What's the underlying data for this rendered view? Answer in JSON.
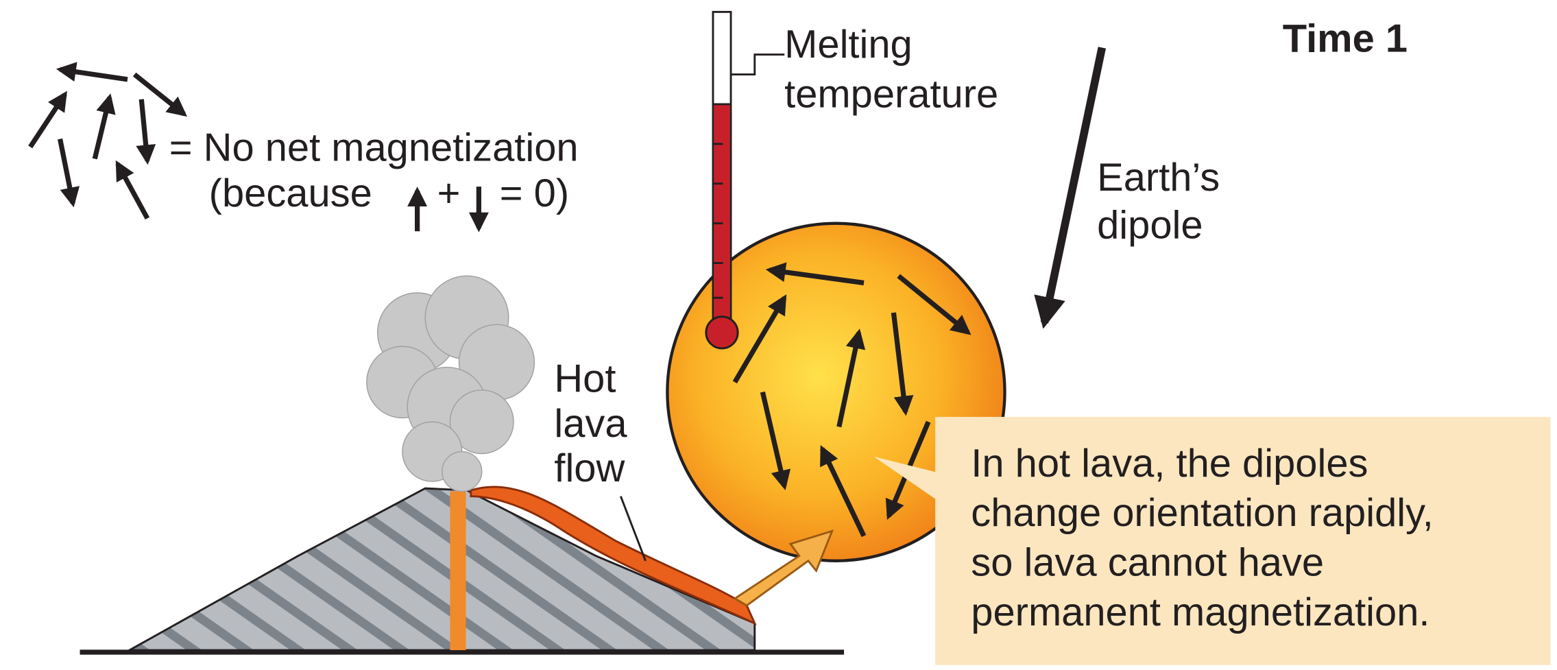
{
  "title": "Time 1",
  "legend": {
    "no_net": "= No net magnetization",
    "because_open": "(because",
    "plus": "+",
    "equals_zero": "= 0)"
  },
  "thermometer": {
    "label": [
      "Melting",
      "temperature"
    ]
  },
  "dipole": {
    "label": [
      "Earth’s",
      "dipole"
    ]
  },
  "lava_flow": {
    "label": [
      "Hot",
      "lava",
      "flow"
    ]
  },
  "callout": [
    "In hot lava, the dipoles",
    "change orientation rapidly,",
    "so lava cannot have",
    "permanent magnetization."
  ]
}
